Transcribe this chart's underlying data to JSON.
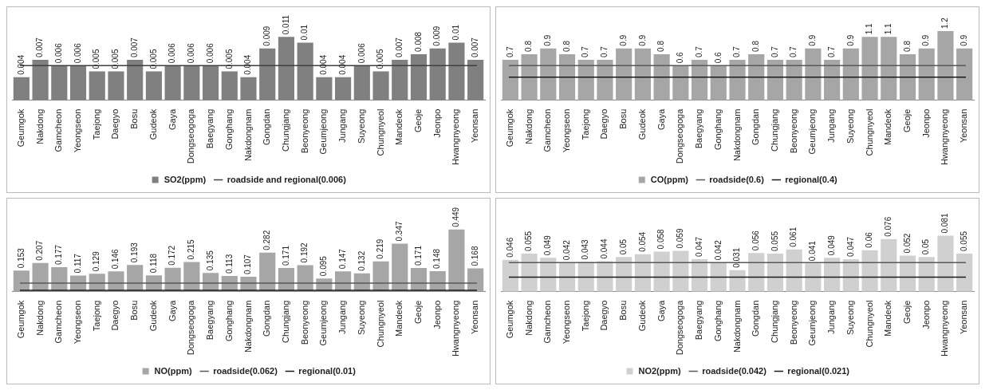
{
  "chart_data": [
    {
      "type": "bar",
      "categories": [
        "Geumgok",
        "Nakdong",
        "Gamcheon",
        "Yeongseon",
        "Taejong",
        "Daegyo",
        "Bosu",
        "Gudeok",
        "Gaya",
        "Dongseogoga",
        "Baegyang",
        "Gonghang",
        "Nakdongnam",
        "Gongdan",
        "Chungjang",
        "Beonyeong",
        "Geumjeong",
        "Jungang",
        "Suyeong",
        "Chungnyeol",
        "Mandeok",
        "Geoje",
        "Jeonpo",
        "Hwangnyeong",
        "Yeonsan"
      ],
      "series": [
        {
          "name": "SO2(ppm)",
          "color": "#808080",
          "values": [
            0.004,
            0.007,
            0.006,
            0.006,
            0.005,
            0.005,
            0.007,
            0.005,
            0.006,
            0.006,
            0.006,
            0.005,
            0.004,
            0.009,
            0.011,
            0.01,
            0.004,
            0.004,
            0.006,
            0.005,
            0.007,
            0.008,
            0.009,
            0.01,
            0.007
          ]
        }
      ],
      "ref_lines": [
        {
          "axis": "y",
          "value": 0.006,
          "label": "roadside and regional(0.006)",
          "color": "#404040"
        }
      ],
      "data_labels": true,
      "legend": "bottom",
      "tick_labels": "x"
    },
    {
      "type": "bar",
      "categories": [
        "Geumgok",
        "Nakdong",
        "Gamcheon",
        "Yeongseon",
        "Taejong",
        "Daegyo",
        "Bosu",
        "Gudeok",
        "Gaya",
        "Dongseogoga",
        "Baegyang",
        "Gonghang",
        "Nakdongnam",
        "Gongdan",
        "Chungjang",
        "Beonyeong",
        "Geumjeong",
        "Jungang",
        "Suyeong",
        "Chungnyeol",
        "Mandeok",
        "Geoje",
        "Jeonpo",
        "Hwangnyeong",
        "Yeonsan"
      ],
      "series": [
        {
          "name": "CO(ppm)",
          "color": "#a6a6a6",
          "values": [
            0.7,
            0.8,
            0.9,
            0.8,
            0.7,
            0.7,
            0.9,
            0.9,
            0.8,
            0.6,
            0.7,
            0.6,
            0.7,
            0.8,
            0.7,
            0.7,
            0.9,
            0.7,
            0.9,
            1.1,
            1.1,
            0.8,
            0.9,
            1.2,
            0.9
          ]
        }
      ],
      "ref_lines": [
        {
          "axis": "y",
          "value": 0.6,
          "label": "roadside(0.6)",
          "color": "#595959"
        },
        {
          "axis": "y",
          "value": 0.4,
          "label": "regional(0.4)",
          "color": "#1a1a1a"
        }
      ],
      "data_labels": true,
      "legend": "bottom",
      "tick_labels": "x"
    },
    {
      "type": "bar",
      "categories": [
        "Geumgok",
        "Nakdong",
        "Gamcheon",
        "Yeongseon",
        "Taejong",
        "Daegyo",
        "Bosu",
        "Gudeok",
        "Gaya",
        "Dongseogoga",
        "Baegyang",
        "Gonghang",
        "Nakdongnam",
        "Gongdan",
        "Chungjang",
        "Beonyeong",
        "Geumjeong",
        "Jungang",
        "Suyeong",
        "Chungnyeol",
        "Mandeok",
        "Geoje",
        "Jeonpo",
        "Hwangnyeong",
        "Yeonsan"
      ],
      "series": [
        {
          "name": "NO(ppm)",
          "color": "#a6a6a6",
          "values": [
            0.153,
            0.207,
            0.177,
            0.117,
            0.129,
            0.146,
            0.193,
            0.118,
            0.172,
            0.215,
            0.135,
            0.113,
            0.107,
            0.282,
            0.171,
            0.192,
            0.095,
            0.147,
            0.132,
            0.219,
            0.347,
            0.171,
            0.148,
            0.449,
            0.168
          ]
        }
      ],
      "ref_lines": [
        {
          "axis": "y",
          "value": 0.062,
          "label": "roadside(0.062)",
          "color": "#595959"
        },
        {
          "axis": "y",
          "value": 0.01,
          "label": "regional(0.01)",
          "color": "#1a1a1a"
        }
      ],
      "data_labels": true,
      "legend": "bottom",
      "tick_labels": "x"
    },
    {
      "type": "bar",
      "categories": [
        "Geumgok",
        "Nakdong",
        "Gamcheon",
        "Yeongseon",
        "Taejong",
        "Daegyo",
        "Bosu",
        "Gudeok",
        "Gaya",
        "Dongseogoga",
        "Baegyang",
        "Gonghang",
        "Nakdongnam",
        "Gongdan",
        "Chungjang",
        "Beonyeong",
        "Geumjeong",
        "Jungang",
        "Suyeong",
        "Chungnyeol",
        "Mandeok",
        "Geoje",
        "Jeonpo",
        "Hwangnyeong",
        "Yeonsan"
      ],
      "series": [
        {
          "name": "NO2(ppm)",
          "color": "#d0d0d0",
          "values": [
            0.046,
            0.055,
            0.049,
            0.042,
            0.043,
            0.044,
            0.05,
            0.054,
            0.058,
            0.059,
            0.047,
            0.042,
            0.031,
            0.056,
            0.055,
            0.061,
            0.041,
            0.049,
            0.047,
            0.06,
            0.076,
            0.052,
            0.05,
            0.081,
            0.055
          ]
        }
      ],
      "ref_lines": [
        {
          "axis": "y",
          "value": 0.042,
          "label": "roadside(0.042)",
          "color": "#595959"
        },
        {
          "axis": "y",
          "value": 0.021,
          "label": "regional(0.021)",
          "color": "#1a1a1a"
        }
      ],
      "data_labels": true,
      "legend": "bottom",
      "tick_labels": "x"
    }
  ]
}
